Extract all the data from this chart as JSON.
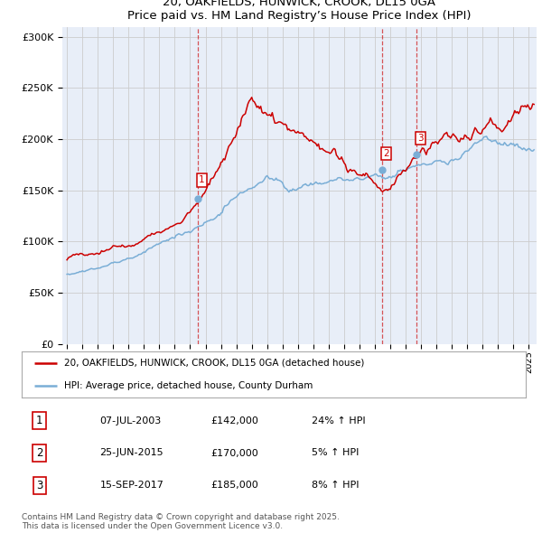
{
  "title": "20, OAKFIELDS, HUNWICK, CROOK, DL15 0GA",
  "subtitle": "Price paid vs. HM Land Registry’s House Price Index (HPI)",
  "ylim": [
    0,
    310000
  ],
  "yticks": [
    0,
    50000,
    100000,
    150000,
    200000,
    250000,
    300000
  ],
  "ytick_labels": [
    "£0",
    "£50K",
    "£100K",
    "£150K",
    "£200K",
    "£250K",
    "£300K"
  ],
  "xlim_start": 1994.7,
  "xlim_end": 2025.5,
  "grid_color": "#cccccc",
  "background_color": "#e8eef8",
  "red_color": "#cc0000",
  "blue_color": "#7aaed6",
  "sale_dates": [
    2003.52,
    2015.48,
    2017.71
  ],
  "sale_prices": [
    142000,
    170000,
    185000
  ],
  "sale_labels": [
    "1",
    "2",
    "3"
  ],
  "legend_red_label": "20, OAKFIELDS, HUNWICK, CROOK, DL15 0GA (detached house)",
  "legend_blue_label": "HPI: Average price, detached house, County Durham",
  "table_rows": [
    [
      "1",
      "07-JUL-2003",
      "£142,000",
      "24% ↑ HPI"
    ],
    [
      "2",
      "25-JUN-2015",
      "£170,000",
      "5% ↑ HPI"
    ],
    [
      "3",
      "15-SEP-2017",
      "£185,000",
      "8% ↑ HPI"
    ]
  ],
  "footnote": "Contains HM Land Registry data © Crown copyright and database right 2025.\nThis data is licensed under the Open Government Licence v3.0."
}
